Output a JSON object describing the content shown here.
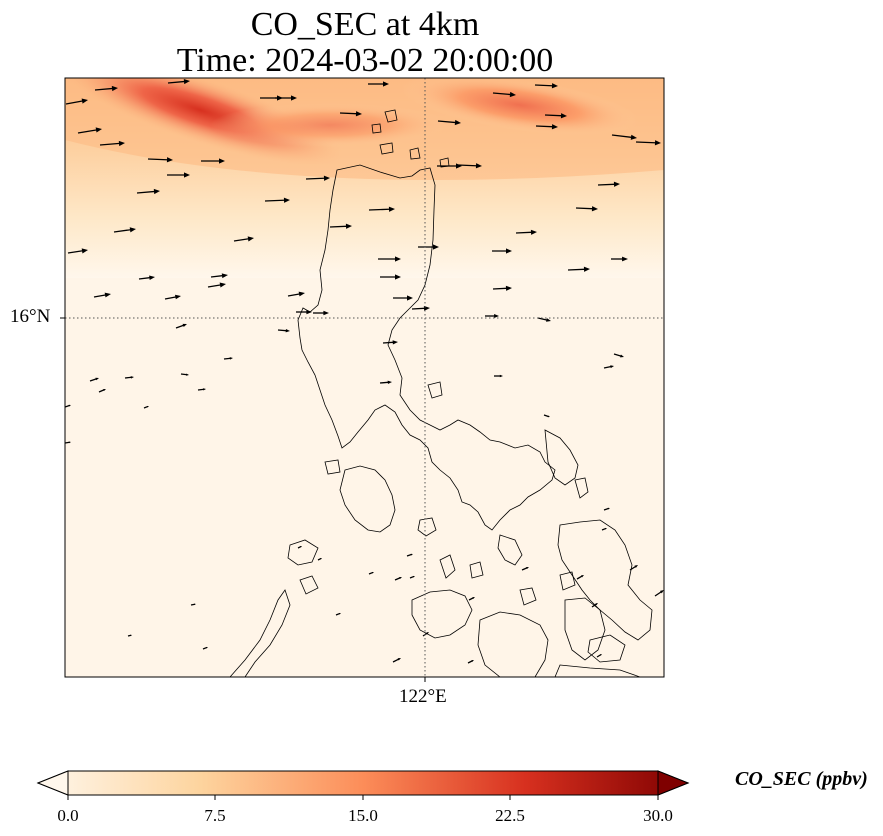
{
  "title": "CO_SEC at 4km",
  "subtitle": "Time: 2024-03-02 20:00:00",
  "axes": {
    "lat_label": "16°N",
    "lon_label": "122°E"
  },
  "colorbar": {
    "label": "CO_SEC (ppbv)",
    "ticks": [
      "0.0",
      "7.5",
      "15.0",
      "22.5",
      "30.0"
    ],
    "min": 0.0,
    "max": 30.0,
    "colormap": "OrRd",
    "extend": "both"
  },
  "colors": {
    "low": "#fff7ec",
    "mid": "#fdbb84",
    "high": "#d7301f",
    "max": "#7f0000",
    "coast": "#000000"
  },
  "map": {
    "type": "heatmap",
    "variable": "CO_SEC",
    "features": [
      "coastline",
      "wind-vectors",
      "graticule"
    ]
  }
}
